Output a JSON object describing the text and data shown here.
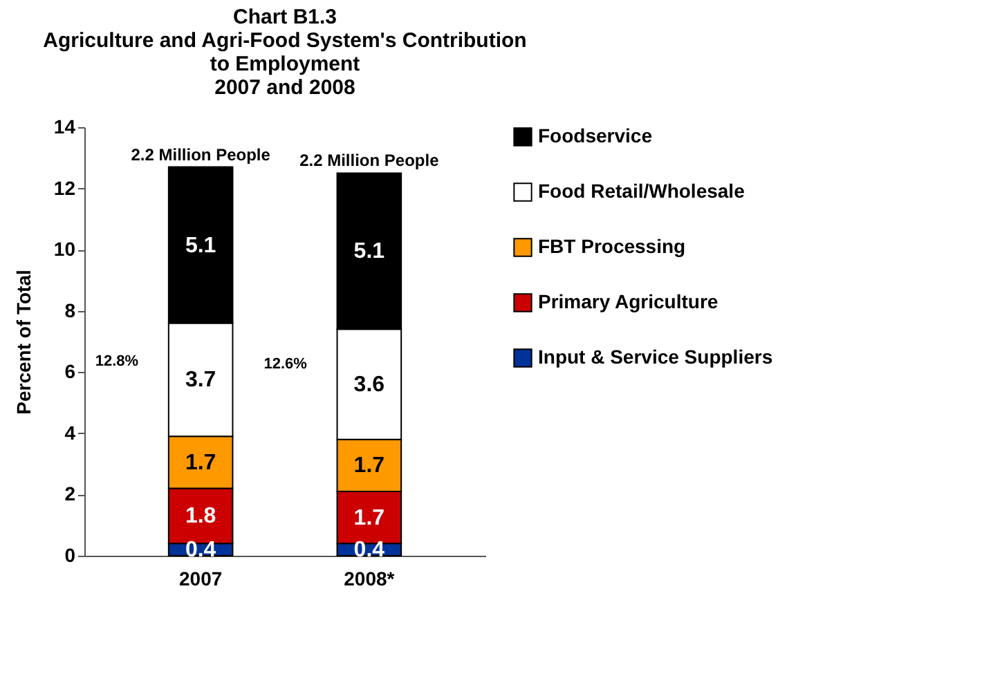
{
  "chart_data": {
    "type": "bar",
    "stacked": true,
    "title": "Chart B1.3\nAgriculture and Agri-Food System's Contribution\nto Employment\n2007 and 2008",
    "ylabel": "Percent of Total",
    "categories": [
      "2007",
      "2008*"
    ],
    "series": [
      {
        "name": "Input & Service Suppliers",
        "color": "#003399",
        "values": [
          0.4,
          0.4
        ]
      },
      {
        "name": "Primary Agriculture",
        "color": "#cc0000",
        "values": [
          1.8,
          1.7
        ]
      },
      {
        "name": "FBT Processing",
        "color": "#ff9900",
        "values": [
          1.7,
          1.7
        ]
      },
      {
        "name": "Food Retail/Wholesale",
        "color": "#ffffff",
        "values": [
          3.7,
          3.6
        ]
      },
      {
        "name": "Foodservice",
        "color": "#000000",
        "values": [
          5.1,
          5.1
        ]
      }
    ],
    "ylim": [
      0,
      14
    ],
    "yticks": [
      0,
      2,
      4,
      6,
      8,
      10,
      12,
      14
    ],
    "grid": false,
    "legend": "right",
    "data_labels": true,
    "annotations": [
      {
        "text": "2.2 Million People",
        "x": "2007",
        "y": 12.7
      },
      {
        "text": "2.2 Million People",
        "x": "2008*",
        "y": 12.5
      },
      "12.8%",
      "12.6%"
    ]
  }
}
